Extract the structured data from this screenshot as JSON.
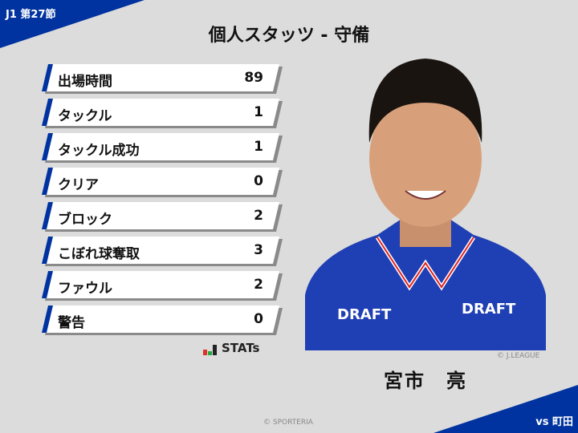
{
  "header": {
    "round": "J1 第27節",
    "title": "個人スタッツ - 守備"
  },
  "stats": [
    {
      "label": "出場時間",
      "value": "89"
    },
    {
      "label": "タックル",
      "value": "1"
    },
    {
      "label": "タックル成功",
      "value": "1"
    },
    {
      "label": "クリア",
      "value": "0"
    },
    {
      "label": "ブロック",
      "value": "2"
    },
    {
      "label": "こぼれ球奪取",
      "value": "3"
    },
    {
      "label": "ファウル",
      "value": "2"
    },
    {
      "label": "警告",
      "value": "0"
    }
  ],
  "brand": {
    "stats_logo": "STATs"
  },
  "player": {
    "name": "宮市　亮",
    "photo_credit": "© J.LEAGUE",
    "shirt_sponsor": "DRAFT"
  },
  "footer": {
    "opponent": "vs 町田",
    "credit": "© SPORTERIA"
  },
  "colors": {
    "accent": "#0033a0",
    "background": "#dcdcdc"
  }
}
